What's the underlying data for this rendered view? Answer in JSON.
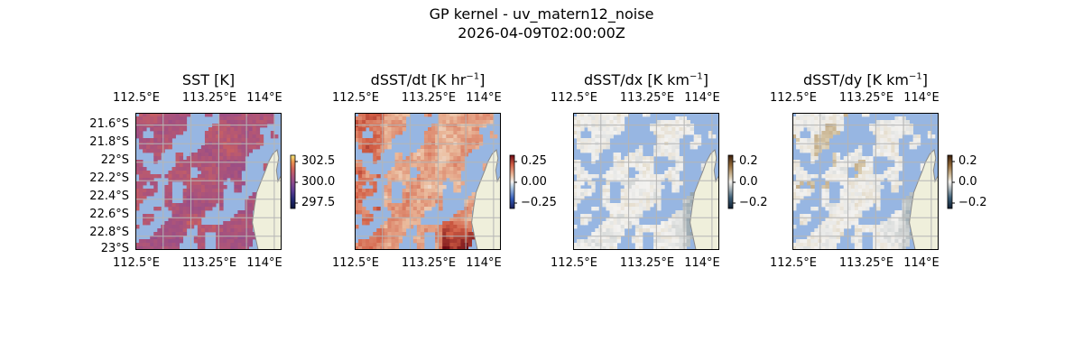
{
  "figure": {
    "title_line1": "GP kernel - uv_matern12_noise",
    "title_line2": "2026-04-09T02:00:00Z"
  },
  "colors": {
    "ocean_nodata": "#97b6e2",
    "land": "#efefdb",
    "coast": "#8a8a8a",
    "grid": "#b5b5b5"
  },
  "chart_data": [
    {
      "type": "heatmap",
      "title": "SST [K]",
      "title_unit_sup": "",
      "colormap": "thermal",
      "colorbar_ticks": [
        "302.5",
        "300.0",
        "297.5"
      ],
      "colorbar_range": [
        296.8,
        303.4
      ],
      "x_ticks_top": [
        "112.5°E",
        "113.25°E",
        "114°E"
      ],
      "x_ticks_bottom": [
        "112.5°E",
        "113.25°E",
        "114°E"
      ],
      "y_ticks": [
        "21.6°S",
        "21.8°S",
        "22°S",
        "22.2°S",
        "22.4°S",
        "22.6°S",
        "22.8°S",
        "23°S"
      ],
      "lon_range": [
        112.5,
        114.0
      ],
      "lat_range": [
        -23.0,
        -21.5
      ]
    },
    {
      "type": "heatmap",
      "title": "dSST/dt [K hr",
      "title_unit_sup": "−1",
      "colormap": "balance",
      "colorbar_ticks": [
        "0.25",
        "0.00",
        "−0.25"
      ],
      "colorbar_range": [
        -0.4,
        0.4
      ],
      "x_ticks_top": [
        "112.5°E",
        "113.25°E",
        "114°E"
      ],
      "x_ticks_bottom": [
        "112.5°E",
        "113.25°E",
        "114°E"
      ],
      "lon_range": [
        112.5,
        114.0
      ],
      "lat_range": [
        -23.0,
        -21.5
      ]
    },
    {
      "type": "heatmap",
      "title": "dSST/dx [K km",
      "title_unit_sup": "−1",
      "colormap": "diff",
      "colorbar_ticks": [
        "0.2",
        "0.0",
        "−0.2"
      ],
      "colorbar_range": [
        -0.2,
        0.2
      ],
      "x_ticks_top": [
        "112.5°E",
        "113.25°E",
        "114°E"
      ],
      "x_ticks_bottom": [
        "112.5°E",
        "113.25°E",
        "114°E"
      ],
      "lon_range": [
        112.5,
        114.0
      ],
      "lat_range": [
        -23.0,
        -21.5
      ]
    },
    {
      "type": "heatmap",
      "title": "dSST/dy [K km",
      "title_unit_sup": "−1",
      "colormap": "diff",
      "colorbar_ticks": [
        "0.2",
        "0.0",
        "−0.2"
      ],
      "colorbar_range": [
        -0.2,
        0.2
      ],
      "x_ticks_top": [
        "112.5°E",
        "113.25°E",
        "114°E"
      ],
      "x_ticks_bottom": [
        "112.5°E",
        "113.25°E",
        "114°E"
      ],
      "lon_range": [
        112.5,
        114.0
      ],
      "lat_range": [
        -23.0,
        -21.5
      ]
    }
  ]
}
